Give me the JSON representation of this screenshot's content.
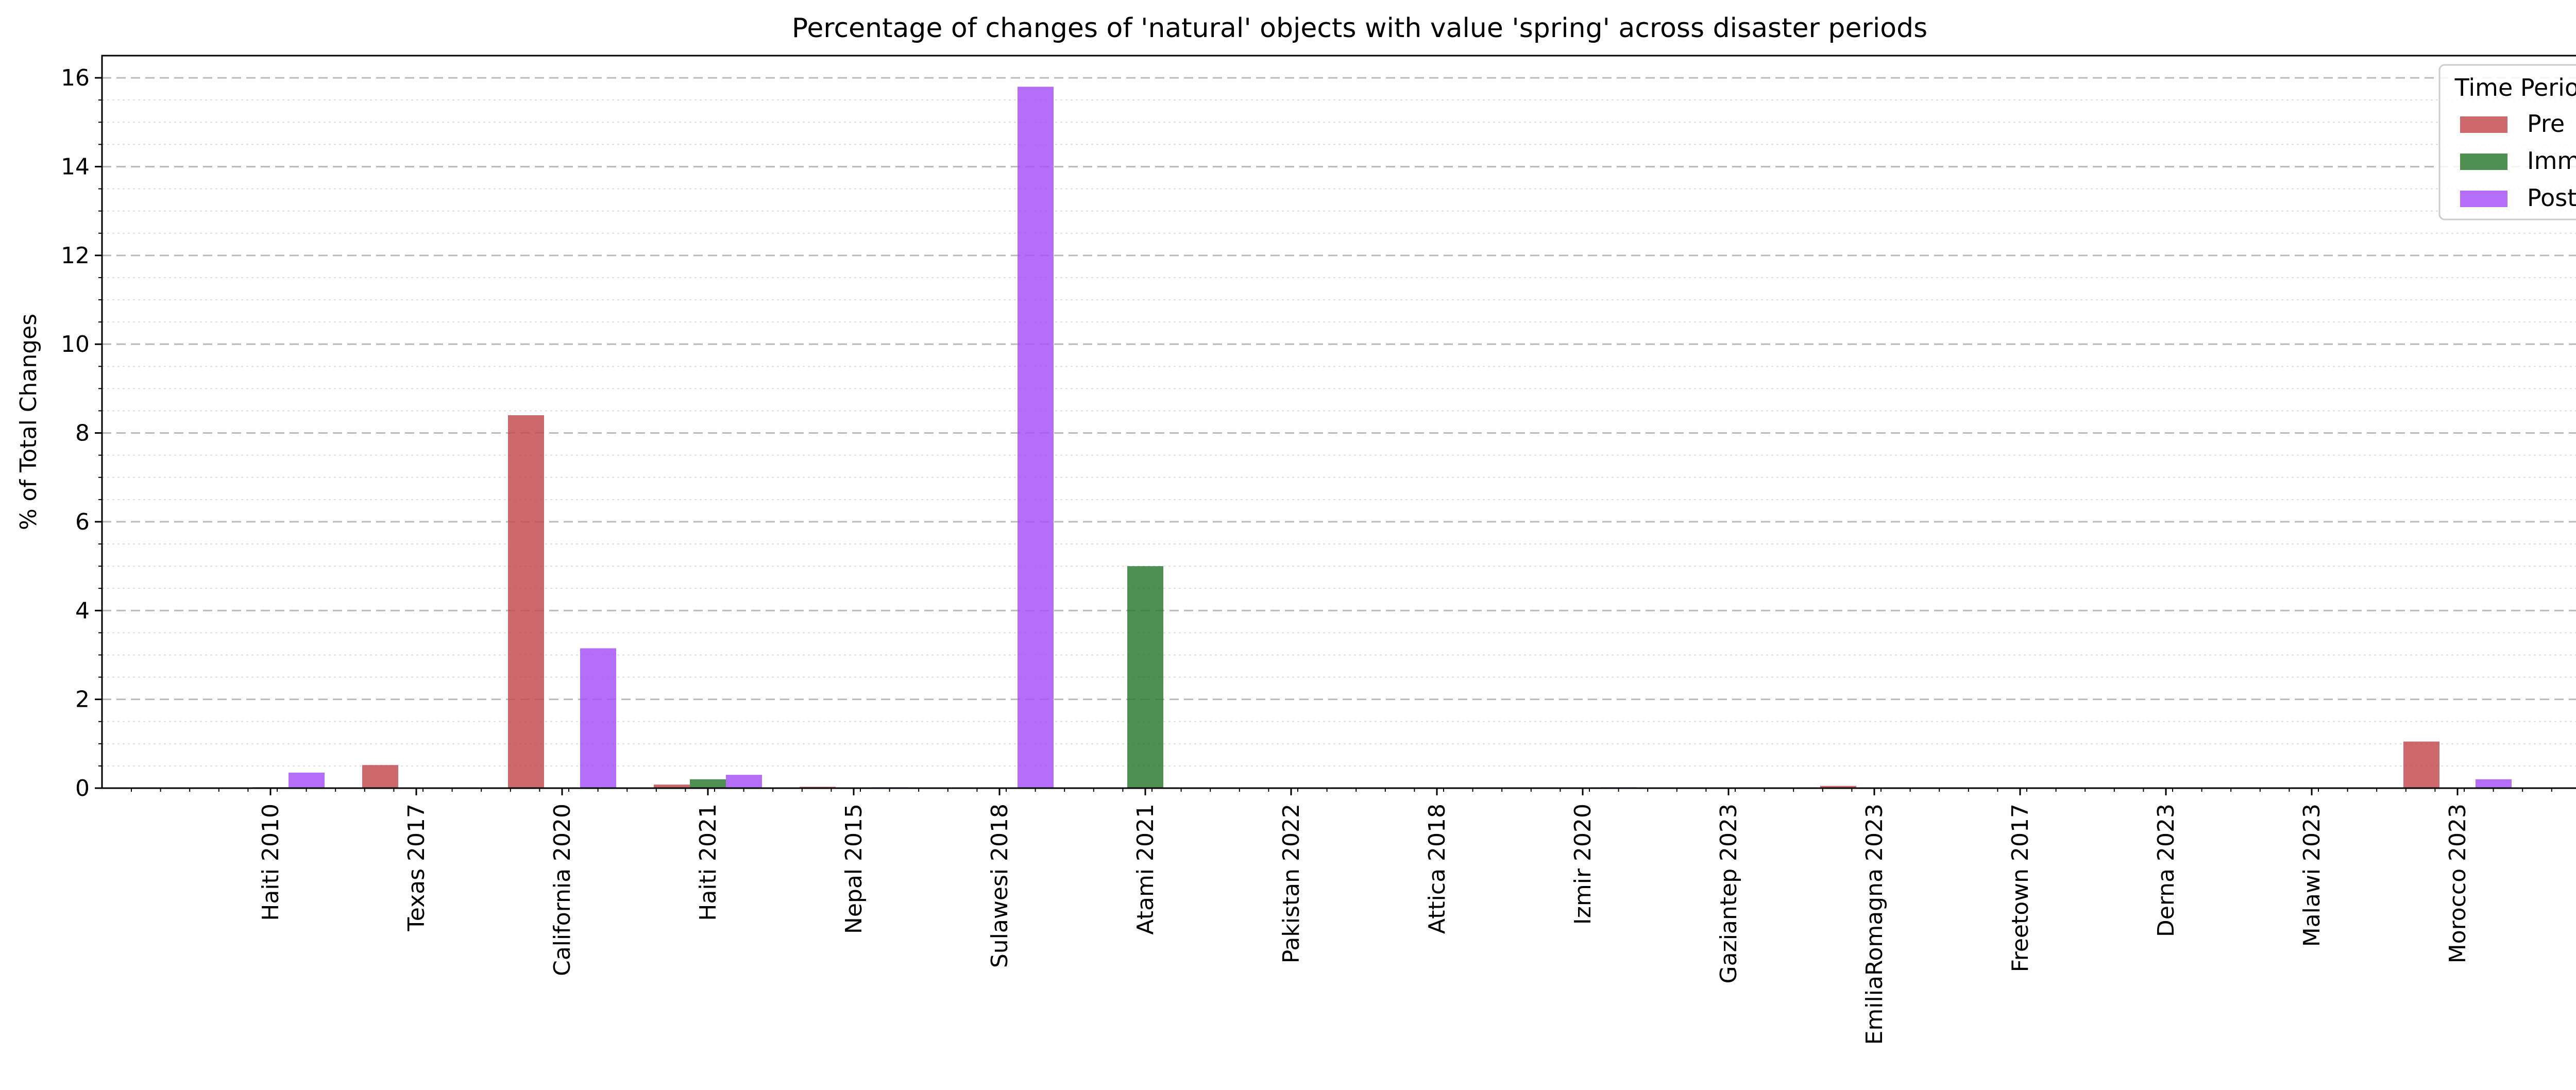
{
  "chart_data": {
    "type": "bar",
    "title": "Percentage of changes of 'natural' objects with value 'spring' across disaster periods",
    "xlabel": "",
    "ylabel": "% of Total Changes",
    "ylim": [
      0,
      16.5
    ],
    "yticks": [
      0,
      2,
      4,
      6,
      8,
      10,
      12,
      14,
      16
    ],
    "ytick_labels": [
      "0",
      "2",
      "4",
      "6",
      "8",
      "10",
      "12",
      "14",
      "16"
    ],
    "grid": {
      "major": true,
      "minor": true,
      "style": "dashed"
    },
    "legend": {
      "title": "Time Period",
      "placement": "top-right"
    },
    "categories": [
      "Haiti 2010",
      "Texas 2017",
      "California 2020",
      "Haiti 2021",
      "Nepal 2015",
      "Sulawesi 2018",
      "Atami 2021",
      "Pakistan 2022",
      "Attica 2018",
      "Izmir 2020",
      "Gaziantep 2023",
      "EmiliaRomagna 2023",
      "Freetown 2017",
      "Derna 2023",
      "Malawi 2023",
      "Morocco 2023"
    ],
    "series": [
      {
        "name": "Pre",
        "color": "#c44e52",
        "values": [
          0,
          0.52,
          8.4,
          0.08,
          0.03,
          0,
          0,
          0,
          0,
          0,
          0,
          0.05,
          0,
          0,
          0,
          1.05
        ]
      },
      {
        "name": "Imm",
        "color": "#2e7d32",
        "values": [
          0.02,
          0,
          0,
          0.2,
          0,
          0,
          5.0,
          0,
          0,
          0,
          0,
          0,
          0,
          0,
          0,
          0
        ]
      },
      {
        "name": "Post",
        "color": "#a855f7",
        "values": [
          0.35,
          0,
          3.15,
          0.3,
          0.02,
          15.8,
          0,
          0,
          0,
          0.02,
          0,
          0,
          0,
          0,
          0,
          0.2
        ]
      }
    ]
  }
}
